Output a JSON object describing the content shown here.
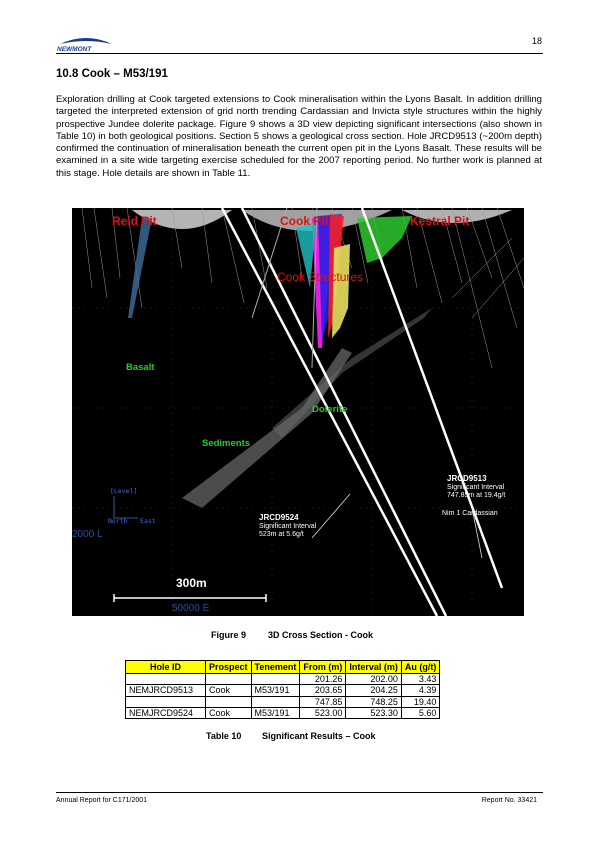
{
  "header": {
    "logo_text": "NEWMONT",
    "page_number": "18"
  },
  "section": {
    "title": "10.8  Cook – M53/191",
    "paragraph": "Exploration drilling at Cook targeted extensions to Cook mineralisation within the Lyons Basalt.  In addition drilling targeted the interpreted extension of grid north trending Cardassian and Invicta style structures within the highly prospective Jundee dolerite package.  Figure 9 shows a 3D view depicting significant intersections (also shown in Table 10) in both geological positions.  Section 5 shows a geological cross section.  Hole JRCD9513 (~200m depth) confirmed the continuation of mineralisation beneath the current open pit in the Lyons Basalt.  These results will be examined in a site wide targeting exercise scheduled for the 2007 reporting period.  No further work is planned at this stage.  Hole details are shown in Table 11."
  },
  "figure": {
    "pits": [
      "Reid Pit",
      "Cook Pit",
      "Kestral Pit"
    ],
    "cook_structures": "Cook Structures",
    "lithology": {
      "basalt": "Basalt",
      "dolerite": "Dolerite",
      "sediments": "Sediments"
    },
    "holes": [
      {
        "id": "JRCD9524",
        "line1": "Significant Interval",
        "line2": "523m at 5.6g/t"
      },
      {
        "id": "JRCD9513",
        "line1": "Significant Interval",
        "line2": "747.85m at 19.4g/t"
      }
    ],
    "nim_label": "Nim 1 Cardassian",
    "axis_level": "[Level]",
    "axis_east": "East",
    "axis_north": "North",
    "level_2000": "2000 L",
    "scale_text": "300m",
    "easting_text": "50000 E",
    "colors": {
      "pit_label": "#e01010",
      "geo_label": "#22cc22",
      "background": "#000000"
    }
  },
  "figure_caption": {
    "number": "Figure 9",
    "text": "3D Cross Section - Cook"
  },
  "table": {
    "headers": [
      "Hole ID",
      "Prospect",
      "Tenement",
      "From (m)",
      "Interval (m)",
      "Au (g/t)"
    ],
    "rows": [
      {
        "hole": "",
        "prospect": "",
        "tenement": "",
        "from": "201.26",
        "interval": "202.00",
        "au": "3.43"
      },
      {
        "hole": "NEMJRCD9513",
        "prospect": "Cook",
        "tenement": "M53/191",
        "from": "203.65",
        "interval": "204.25",
        "au": "4.39"
      },
      {
        "hole": "",
        "prospect": "",
        "tenement": "",
        "from": "747.85",
        "interval": "748.25",
        "au": "19.40"
      },
      {
        "hole": "NEMJRCD9524",
        "prospect": "Cook",
        "tenement": "M53/191",
        "from": "523.00",
        "interval": "523.30",
        "au": "5.60"
      }
    ],
    "header_color": "#ffff00"
  },
  "table_caption": {
    "number": "Table 10",
    "text": "Significant Results – Cook"
  },
  "footer": {
    "left": "Annual Report for C171/2001",
    "right": "Report No. 33421"
  }
}
